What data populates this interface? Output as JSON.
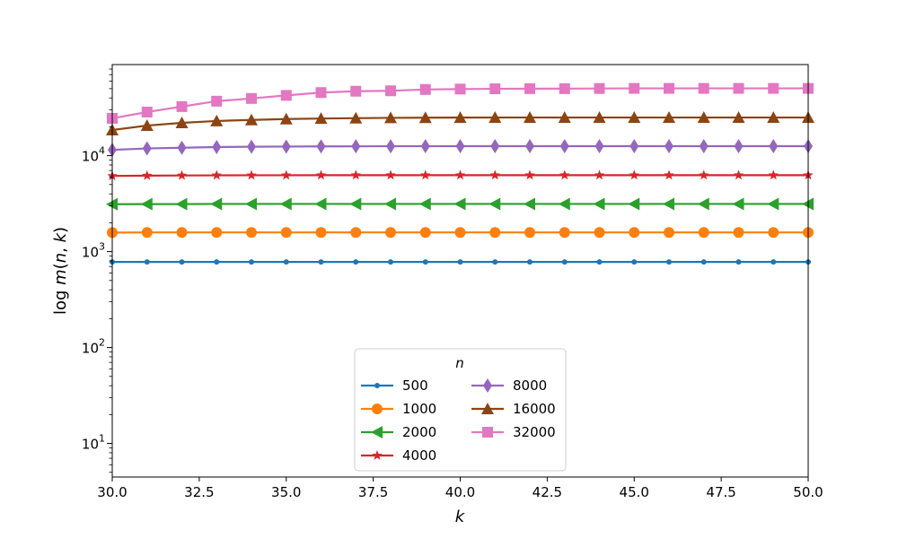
{
  "chart_data": {
    "type": "line",
    "title": "",
    "xlabel": "k",
    "ylabel": "log m(n, k)",
    "x": [
      30,
      31,
      32,
      33,
      34,
      35,
      36,
      37,
      38,
      39,
      40,
      41,
      42,
      43,
      44,
      45,
      46,
      47,
      48,
      49,
      50
    ],
    "xlim": [
      30,
      50
    ],
    "ylim_log10": [
      0.65,
      4.95
    ],
    "yscale": "log",
    "grid": false,
    "x_ticks": [
      "30.0",
      "32.5",
      "35.0",
      "37.5",
      "40.0",
      "42.5",
      "45.0",
      "47.5",
      "50.0"
    ],
    "y_ticks": [
      {
        "base": "10",
        "exp": "1",
        "value": 10
      },
      {
        "base": "10",
        "exp": "2",
        "value": 100
      },
      {
        "base": "10",
        "exp": "3",
        "value": 1000
      },
      {
        "base": "10",
        "exp": "4",
        "value": 10000
      }
    ],
    "legend": {
      "title": "n",
      "placement": "lower center",
      "columns": 2
    },
    "series": [
      {
        "name": "500",
        "color": "#1f77b4",
        "marker": "circle-small",
        "values": [
          780,
          781,
          781,
          781,
          781,
          781,
          781,
          781,
          781,
          781,
          781,
          781,
          781,
          781,
          781,
          781,
          780,
          781,
          781,
          781,
          781
        ]
      },
      {
        "name": "1000",
        "color": "#ff7f0e",
        "marker": "circle",
        "values": [
          1580,
          1585,
          1585,
          1585,
          1585,
          1585,
          1585,
          1585,
          1585,
          1585,
          1585,
          1585,
          1585,
          1585,
          1585,
          1585,
          1585,
          1585,
          1585,
          1585,
          1585
        ]
      },
      {
        "name": "2000",
        "color": "#2ca02c",
        "marker": "triangle-left",
        "values": [
          3120,
          3130,
          3130,
          3140,
          3140,
          3140,
          3140,
          3140,
          3140,
          3140,
          3140,
          3140,
          3140,
          3140,
          3140,
          3140,
          3140,
          3140,
          3140,
          3140,
          3140
        ]
      },
      {
        "name": "4000",
        "color": "#d62728",
        "marker": "star",
        "values": [
          6150,
          6200,
          6220,
          6240,
          6250,
          6250,
          6260,
          6260,
          6260,
          6260,
          6260,
          6260,
          6260,
          6260,
          6260,
          6260,
          6260,
          6260,
          6260,
          6260,
          6260
        ]
      },
      {
        "name": "8000",
        "color": "#9467bd",
        "marker": "thin-diamond",
        "values": [
          11500,
          11900,
          12100,
          12300,
          12400,
          12450,
          12500,
          12520,
          12550,
          12560,
          12570,
          12570,
          12570,
          12570,
          12570,
          12570,
          12570,
          12570,
          12570,
          12570,
          12570
        ]
      },
      {
        "name": "16000",
        "color": "#8b4513",
        "marker": "triangle-up",
        "values": [
          18500,
          20600,
          22000,
          23000,
          23600,
          24100,
          24400,
          24600,
          24800,
          24900,
          24950,
          25000,
          25000,
          25000,
          25000,
          25000,
          25000,
          25000,
          25000,
          25000,
          25000
        ]
      },
      {
        "name": "32000",
        "color": "#e377c2",
        "marker": "square",
        "values": [
          24500,
          28500,
          32500,
          37000,
          39500,
          42500,
          45500,
          47000,
          47500,
          49000,
          49500,
          49800,
          50000,
          50000,
          50200,
          50300,
          50300,
          50300,
          50300,
          50300,
          50300
        ]
      }
    ]
  }
}
